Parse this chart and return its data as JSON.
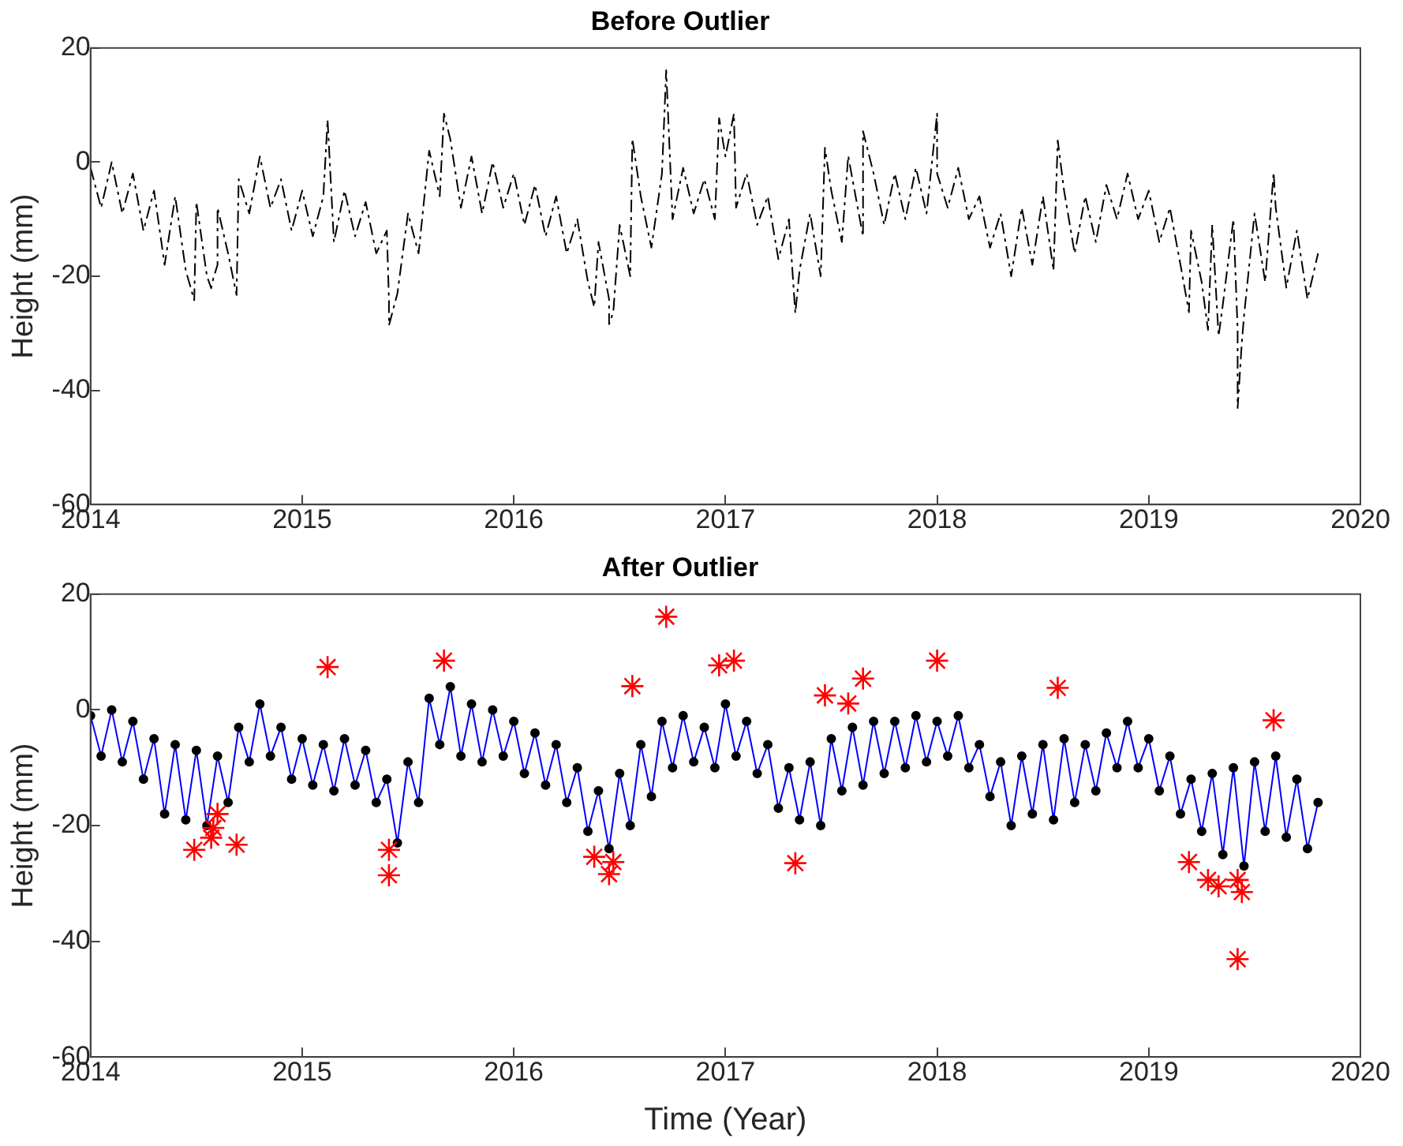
{
  "chart_data": [
    {
      "type": "line",
      "title": "Before Outlier",
      "ylabel": "Height (mm)",
      "xlim": [
        2014,
        2020
      ],
      "xticks": [
        2014,
        2015,
        2016,
        2017,
        2018,
        2019,
        2020
      ],
      "ylim": [
        -60,
        20
      ],
      "yticks": [
        -60,
        -40,
        -20,
        0,
        20
      ],
      "grid": false,
      "legend": false,
      "series": [
        {
          "type": "line",
          "color": "#000000",
          "marker": "none",
          "line_style": "dashed",
          "x": [
            2014.0,
            2014.05,
            2014.1,
            2014.15,
            2014.2,
            2014.25,
            2014.3,
            2014.35,
            2014.4,
            2014.45,
            2014.49,
            2014.5,
            2014.55,
            2014.57,
            2014.58,
            2014.6,
            2014.6,
            2014.65,
            2014.69,
            2014.7,
            2014.75,
            2014.8,
            2014.85,
            2014.9,
            2014.95,
            2015.0,
            2015.05,
            2015.1,
            2015.12,
            2015.15,
            2015.2,
            2015.25,
            2015.3,
            2015.35,
            2015.4,
            2015.41,
            2015.41,
            2015.45,
            2015.5,
            2015.55,
            2015.6,
            2015.65,
            2015.67,
            2015.7,
            2015.75,
            2015.8,
            2015.85,
            2015.9,
            2015.95,
            2016.0,
            2016.05,
            2016.1,
            2016.15,
            2016.2,
            2016.25,
            2016.3,
            2016.35,
            2016.38,
            2016.4,
            2016.45,
            2016.45,
            2016.47,
            2016.5,
            2016.55,
            2016.56,
            2016.6,
            2016.65,
            2016.7,
            2016.72,
            2016.75,
            2016.8,
            2016.85,
            2016.9,
            2016.95,
            2016.97,
            2017.0,
            2017.04,
            2017.05,
            2017.1,
            2017.15,
            2017.2,
            2017.25,
            2017.3,
            2017.33,
            2017.35,
            2017.4,
            2017.45,
            2017.47,
            2017.5,
            2017.55,
            2017.58,
            2017.6,
            2017.65,
            2017.65,
            2017.7,
            2017.75,
            2017.8,
            2017.85,
            2017.9,
            2017.95,
            2018.0,
            2018.0,
            2018.05,
            2018.1,
            2018.15,
            2018.2,
            2018.25,
            2018.3,
            2018.35,
            2018.4,
            2018.45,
            2018.5,
            2018.55,
            2018.57,
            2018.6,
            2018.65,
            2018.7,
            2018.75,
            2018.8,
            2018.85,
            2018.9,
            2018.95,
            2019.0,
            2019.05,
            2019.1,
            2019.15,
            2019.19,
            2019.2,
            2019.25,
            2019.28,
            2019.3,
            2019.33,
            2019.35,
            2019.4,
            2019.42,
            2019.42,
            2019.44,
            2019.45,
            2019.5,
            2019.55,
            2019.59,
            2019.6,
            2019.65,
            2019.7,
            2019.75,
            2019.8
          ],
          "values": [
            -1,
            -8,
            0,
            -9,
            -2,
            -12,
            -5,
            -18,
            -6,
            -19,
            -24.2,
            -7,
            -20,
            -22.1,
            -20.4,
            -18,
            -8,
            -16,
            -23.3,
            -3,
            -9,
            1,
            -8,
            -3,
            -12,
            -5,
            -13,
            -6,
            7.4,
            -14,
            -5,
            -13,
            -7,
            -16,
            -12,
            -24.2,
            -28.6,
            -23,
            -9,
            -16,
            2,
            -6,
            8.5,
            4,
            -8,
            1,
            -9,
            0,
            -8,
            -2,
            -11,
            -4,
            -13,
            -6,
            -16,
            -10,
            -21,
            -25.4,
            -14,
            -24,
            -28.4,
            -26.3,
            -11,
            -20,
            4.1,
            -6,
            -15,
            -2,
            16.1,
            -10,
            -1,
            -9,
            -3,
            -10,
            7.7,
            1,
            8.5,
            -8,
            -2,
            -11,
            -6,
            -17,
            -10,
            -26.5,
            -19,
            -9,
            -20,
            2.5,
            -5,
            -14,
            1.1,
            -3,
            -13,
            5.4,
            -2,
            -11,
            -2,
            -10,
            -1,
            -9,
            8.5,
            -2,
            -8,
            -1,
            -10,
            -6,
            -15,
            -9,
            -20,
            -8,
            -18,
            -6,
            -19,
            3.8,
            -5,
            -16,
            -6,
            -14,
            -4,
            -10,
            -2,
            -10,
            -5,
            -14,
            -8,
            -18,
            -26.3,
            -12,
            -21,
            -29.4,
            -11,
            -30.5,
            -25,
            -10,
            -29.4,
            -43.1,
            -31.5,
            -27,
            -9,
            -21,
            -1.8,
            -8,
            -22,
            -12,
            -24,
            -16
          ]
        }
      ]
    },
    {
      "type": "line",
      "title": "After Outlier",
      "xlabel": "Time (Year)",
      "ylabel": "Height (mm)",
      "xlim": [
        2014,
        2020
      ],
      "xticks": [
        2014,
        2015,
        2016,
        2017,
        2018,
        2019,
        2020
      ],
      "ylim": [
        -60,
        20
      ],
      "yticks": [
        -60,
        -40,
        -20,
        0,
        20
      ],
      "grid": false,
      "legend": false,
      "series": [
        {
          "type": "line",
          "color": "#0000ff",
          "marker": "circle",
          "line_style": "solid",
          "x": [
            2014.0,
            2014.05,
            2014.1,
            2014.15,
            2014.2,
            2014.25,
            2014.3,
            2014.35,
            2014.4,
            2014.45,
            2014.5,
            2014.55,
            2014.6,
            2014.65,
            2014.7,
            2014.75,
            2014.8,
            2014.85,
            2014.9,
            2014.95,
            2015.0,
            2015.05,
            2015.1,
            2015.15,
            2015.2,
            2015.25,
            2015.3,
            2015.35,
            2015.4,
            2015.45,
            2015.5,
            2015.55,
            2015.6,
            2015.65,
            2015.7,
            2015.75,
            2015.8,
            2015.85,
            2015.9,
            2015.95,
            2016.0,
            2016.05,
            2016.1,
            2016.15,
            2016.2,
            2016.25,
            2016.3,
            2016.35,
            2016.4,
            2016.45,
            2016.5,
            2016.55,
            2016.6,
            2016.65,
            2016.7,
            2016.75,
            2016.8,
            2016.85,
            2016.9,
            2016.95,
            2017.0,
            2017.05,
            2017.1,
            2017.15,
            2017.2,
            2017.25,
            2017.3,
            2017.35,
            2017.4,
            2017.45,
            2017.5,
            2017.55,
            2017.6,
            2017.65,
            2017.7,
            2017.75,
            2017.8,
            2017.85,
            2017.9,
            2017.95,
            2018.0,
            2018.05,
            2018.1,
            2018.15,
            2018.2,
            2018.25,
            2018.3,
            2018.35,
            2018.4,
            2018.45,
            2018.5,
            2018.55,
            2018.6,
            2018.65,
            2018.7,
            2018.75,
            2018.8,
            2018.85,
            2018.9,
            2018.95,
            2019.0,
            2019.05,
            2019.1,
            2019.15,
            2019.2,
            2019.25,
            2019.3,
            2019.35,
            2019.4,
            2019.45,
            2019.5,
            2019.55,
            2019.6,
            2019.65,
            2019.7,
            2019.75,
            2019.8
          ],
          "values": [
            -1,
            -8,
            0,
            -9,
            -2,
            -12,
            -5,
            -18,
            -6,
            -19,
            -7,
            -20,
            -8,
            -16,
            -3,
            -9,
            1,
            -8,
            -3,
            -12,
            -5,
            -13,
            -6,
            -14,
            -5,
            -13,
            -7,
            -16,
            -12,
            -23,
            -9,
            -16,
            2,
            -6,
            4,
            -8,
            1,
            -9,
            0,
            -8,
            -2,
            -11,
            -4,
            -13,
            -6,
            -16,
            -10,
            -21,
            -14,
            -24,
            -11,
            -20,
            -6,
            -15,
            -2,
            -10,
            -1,
            -9,
            -3,
            -10,
            1,
            -8,
            -2,
            -11,
            -6,
            -17,
            -10,
            -19,
            -9,
            -20,
            -5,
            -14,
            -3,
            -13,
            -2,
            -11,
            -2,
            -10,
            -1,
            -9,
            -2,
            -8,
            -1,
            -10,
            -6,
            -15,
            -9,
            -20,
            -8,
            -18,
            -6,
            -19,
            -5,
            -16,
            -6,
            -14,
            -4,
            -10,
            -2,
            -10,
            -5,
            -14,
            -8,
            -18,
            -12,
            -21,
            -11,
            -25,
            -10,
            -27,
            -9,
            -21,
            -8,
            -22,
            -12,
            -24,
            -16
          ]
        },
        {
          "type": "scatter",
          "color": "#ff0000",
          "marker": "cross",
          "x": [
            2014.49,
            2014.57,
            2014.58,
            2014.6,
            2014.69,
            2015.12,
            2015.41,
            2015.41,
            2015.67,
            2016.38,
            2016.45,
            2016.47,
            2016.56,
            2016.72,
            2016.97,
            2017.04,
            2017.33,
            2017.47,
            2017.58,
            2017.65,
            2018.0,
            2018.57,
            2019.19,
            2019.28,
            2019.33,
            2019.42,
            2019.44,
            2019.42,
            2019.59
          ],
          "values": [
            -24.2,
            -22.1,
            -20.4,
            -18,
            -23.3,
            7.4,
            -24.2,
            -28.6,
            8.5,
            -25.4,
            -28.4,
            -26.3,
            4.1,
            16.1,
            7.7,
            8.5,
            -26.5,
            2.5,
            1.1,
            5.4,
            8.5,
            3.8,
            -26.3,
            -29.4,
            -30.5,
            -29.4,
            -31.5,
            -43.1,
            -1.8
          ]
        }
      ]
    }
  ]
}
